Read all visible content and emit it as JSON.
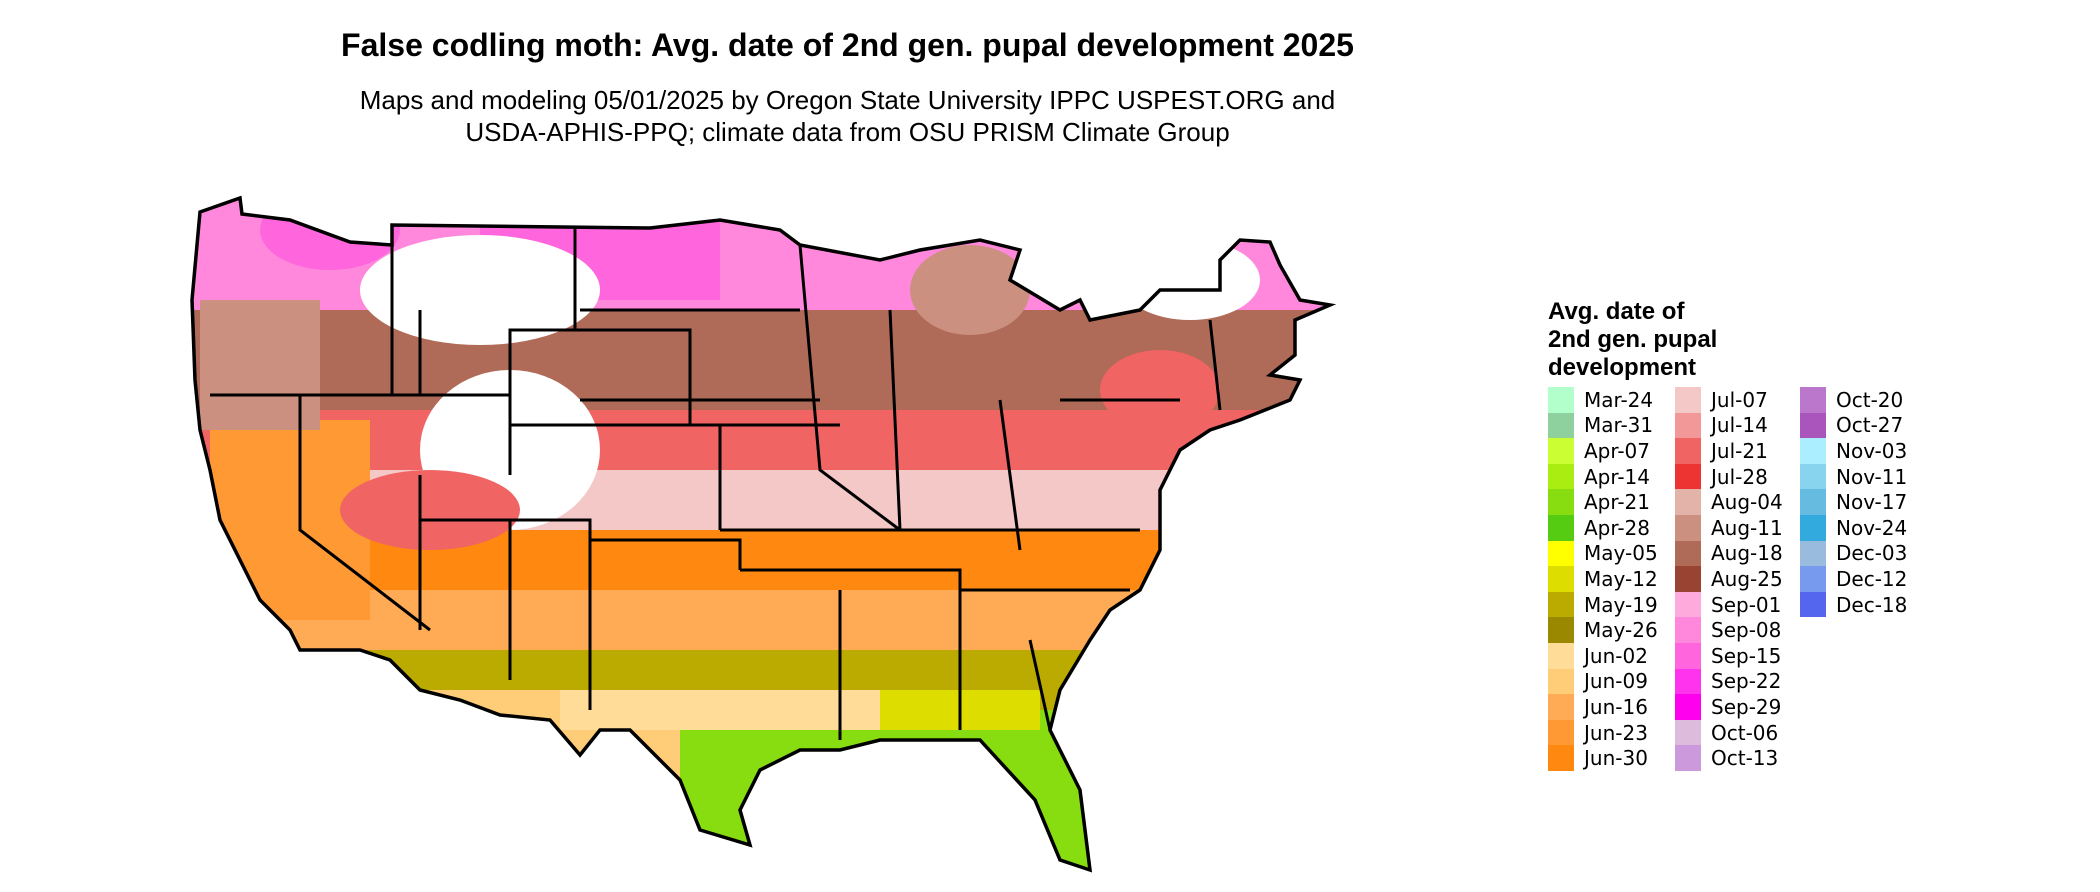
{
  "title": "False codling moth: Avg. date of 2nd gen. pupal development 2025",
  "subtitle_line1": "Maps and modeling 05/01/2025 by Oregon State University IPPC USPEST.ORG and",
  "subtitle_line2": "USDA-APHIS-PPQ; climate data from OSU PRISM Climate Group",
  "legend": {
    "title_lines": [
      "Avg. date of",
      "2nd gen. pupal",
      "development"
    ],
    "columns": [
      [
        {
          "label": "Mar-24",
          "color": "#b3ffcc"
        },
        {
          "label": "Mar-31",
          "color": "#8fd19e"
        },
        {
          "label": "Apr-07",
          "color": "#ccff33"
        },
        {
          "label": "Apr-14",
          "color": "#aaee11"
        },
        {
          "label": "Apr-21",
          "color": "#88dd11"
        },
        {
          "label": "Apr-28",
          "color": "#55cc11"
        },
        {
          "label": "May-05",
          "color": "#ffff00"
        },
        {
          "label": "May-12",
          "color": "#dddd00"
        },
        {
          "label": "May-19",
          "color": "#bbaa00"
        },
        {
          "label": "May-26",
          "color": "#998800"
        },
        {
          "label": "Jun-02",
          "color": "#ffdd99"
        },
        {
          "label": "Jun-09",
          "color": "#ffcc77"
        },
        {
          "label": "Jun-16",
          "color": "#ffaa55"
        },
        {
          "label": "Jun-23",
          "color": "#ff9933"
        },
        {
          "label": "Jun-30",
          "color": "#ff8811"
        }
      ],
      [
        {
          "label": "Jul-07",
          "color": "#f5c8c8"
        },
        {
          "label": "Jul-14",
          "color": "#f29898"
        },
        {
          "label": "Jul-21",
          "color": "#f06464"
        },
        {
          "label": "Jul-28",
          "color": "#ee3333"
        },
        {
          "label": "Aug-04",
          "color": "#e3b2a8"
        },
        {
          "label": "Aug-11",
          "color": "#cc9080"
        },
        {
          "label": "Aug-18",
          "color": "#b06a58"
        },
        {
          "label": "Aug-25",
          "color": "#994433"
        },
        {
          "label": "Sep-01",
          "color": "#ffaadd"
        },
        {
          "label": "Sep-08",
          "color": "#ff88dd"
        },
        {
          "label": "Sep-15",
          "color": "#ff66dd"
        },
        {
          "label": "Sep-22",
          "color": "#ff33ee"
        },
        {
          "label": "Sep-29",
          "color": "#ff00ee"
        },
        {
          "label": "Oct-06",
          "color": "#ddbbdd"
        },
        {
          "label": "Oct-13",
          "color": "#cc99dd"
        }
      ],
      [
        {
          "label": "Oct-20",
          "color": "#bb77cc"
        },
        {
          "label": "Oct-27",
          "color": "#aa55bb"
        },
        {
          "label": "Nov-03",
          "color": "#aaeeff"
        },
        {
          "label": "Nov-11",
          "color": "#88d4ee"
        },
        {
          "label": "Nov-17",
          "color": "#66bbe0"
        },
        {
          "label": "Nov-24",
          "color": "#33aadd"
        },
        {
          "label": "Dec-03",
          "color": "#99bbdd"
        },
        {
          "label": "Dec-12",
          "color": "#7799ee"
        },
        {
          "label": "Dec-18",
          "color": "#5566ee"
        }
      ]
    ]
  }
}
